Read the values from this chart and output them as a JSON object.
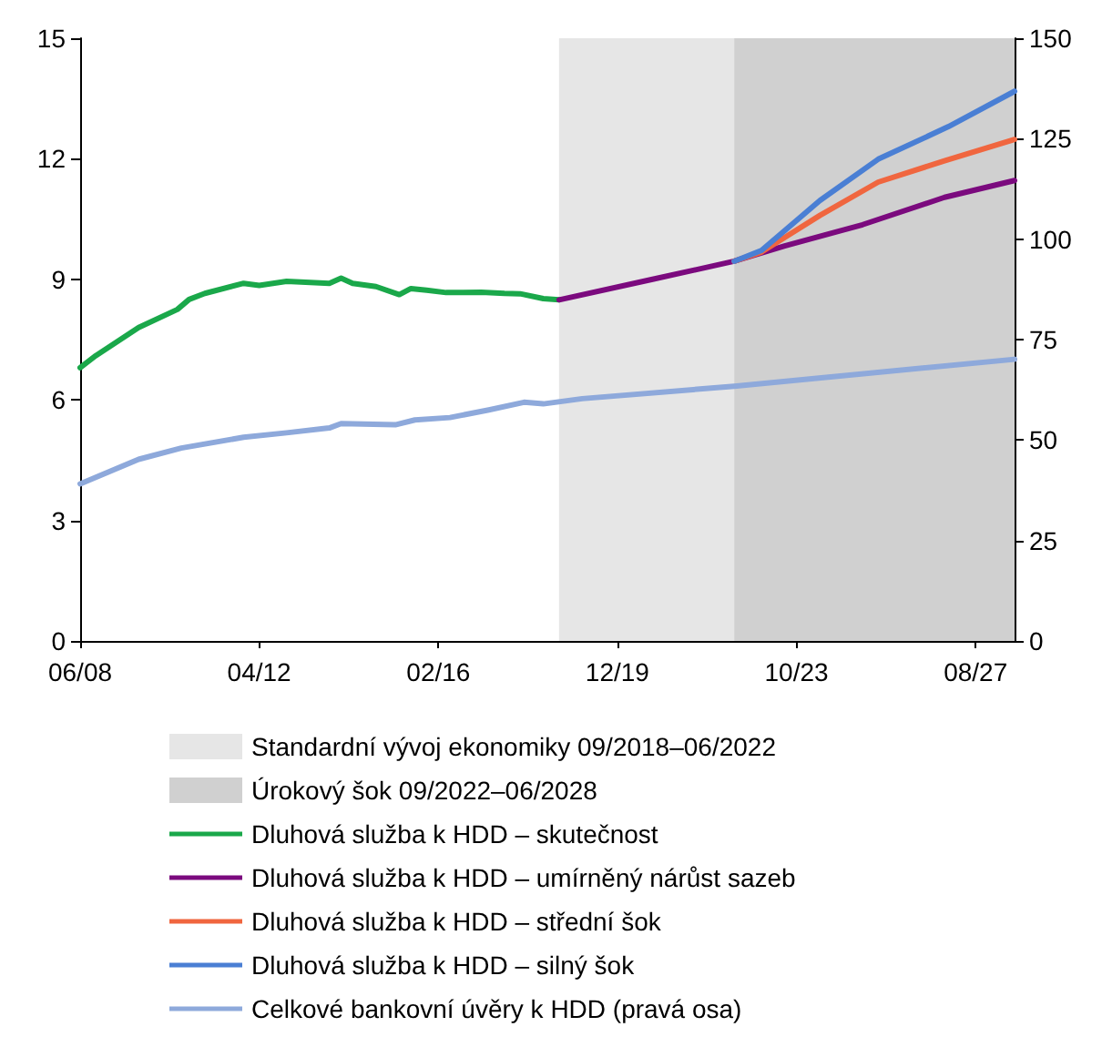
{
  "chart_data": {
    "type": "line",
    "xlim": [
      "2008-06",
      "2028-06"
    ],
    "xticks": [
      {
        "value": "2008-06",
        "label": "06/08"
      },
      {
        "value": "2012-04",
        "label": "04/12"
      },
      {
        "value": "2016-02",
        "label": "02/16"
      },
      {
        "value": "2019-12",
        "label": "12/19"
      },
      {
        "value": "2023-10",
        "label": "10/23"
      },
      {
        "value": "2027-08",
        "label": "08/27"
      }
    ],
    "ylim": [
      0,
      15
    ],
    "yticks": [
      0,
      3,
      6,
      9,
      12,
      15
    ],
    "y2lim": [
      0,
      150
    ],
    "y2ticks": [
      0,
      25,
      50,
      75,
      100,
      125,
      150
    ],
    "grid": false,
    "legend": "bottom",
    "marker": "none",
    "line_style": "solid",
    "bands": [
      {
        "axis": "x",
        "from": "2018-09",
        "to": "2022-06",
        "label": "Standardní vývoj ekonomiky 09/2018–06/2022",
        "color": "#e6e6e6"
      },
      {
        "axis": "x",
        "from": "2022-06",
        "to": "2028-06",
        "label": "Úrokový šok 09/2022–06/2028",
        "color": "#d0d0d0"
      }
    ],
    "series": [
      {
        "name": "Dluhová služba k HDD – skutečnost",
        "color": "#1aa84a",
        "x": [
          "2008-06",
          "2008-10",
          "2009-09",
          "2010-07",
          "2010-10",
          "2011-02",
          "2011-12",
          "2012-04",
          "2012-11",
          "2013-10",
          "2014-01",
          "2014-04",
          "2014-10",
          "2015-04",
          "2015-07",
          "2015-11",
          "2016-04",
          "2017-01",
          "2017-07",
          "2017-11",
          "2018-05",
          "2018-09"
        ],
        "values": [
          6.8,
          7.1,
          7.8,
          8.25,
          8.5,
          8.65,
          8.9,
          8.85,
          8.95,
          8.9,
          9.03,
          8.9,
          8.82,
          8.62,
          8.77,
          8.73,
          8.67,
          8.68,
          8.65,
          8.64,
          8.52,
          8.49
        ]
      },
      {
        "name": "Dluhová služba k HDD – umírněný nárůst sazeb",
        "color": "#7b0a7e",
        "x": [
          "2018-09",
          "2020-09",
          "2022-06",
          "2023-07",
          "2025-03",
          "2026-12",
          "2028-06"
        ],
        "values": [
          8.49,
          9.0,
          9.45,
          9.83,
          10.36,
          11.04,
          11.46
        ]
      },
      {
        "name": "Dluhová služba k HDD – střední šok",
        "color": "#f0663f",
        "x": [
          "2022-06",
          "2023-01",
          "2024-04",
          "2025-07",
          "2026-12",
          "2028-06"
        ],
        "values": [
          9.45,
          9.68,
          10.59,
          11.42,
          11.95,
          12.48
        ]
      },
      {
        "name": "Dluhová služba k HDD – silný šok",
        "color": "#4a7fd4",
        "x": [
          "2022-06",
          "2023-01",
          "2024-04",
          "2025-07",
          "2027-01",
          "2028-06"
        ],
        "values": [
          9.45,
          9.72,
          10.96,
          11.99,
          12.8,
          13.68
        ]
      },
      {
        "name": "Celkové bankovní úvěry k HDD (pravá osa)",
        "color": "#8ea9db",
        "axis": "y2",
        "x": [
          "2008-06",
          "2009-09",
          "2010-08",
          "2011-12",
          "2012-11",
          "2013-10",
          "2014-01",
          "2015-03",
          "2015-08",
          "2016-05",
          "2017-03",
          "2017-12",
          "2018-05",
          "2019-03",
          "2022-06",
          "2028-06"
        ],
        "values": [
          39.1,
          45.2,
          48.0,
          50.7,
          51.8,
          53.0,
          54.1,
          53.8,
          55.0,
          55.6,
          57.5,
          59.4,
          59.0,
          60.3,
          63.4,
          70.1
        ]
      }
    ]
  }
}
